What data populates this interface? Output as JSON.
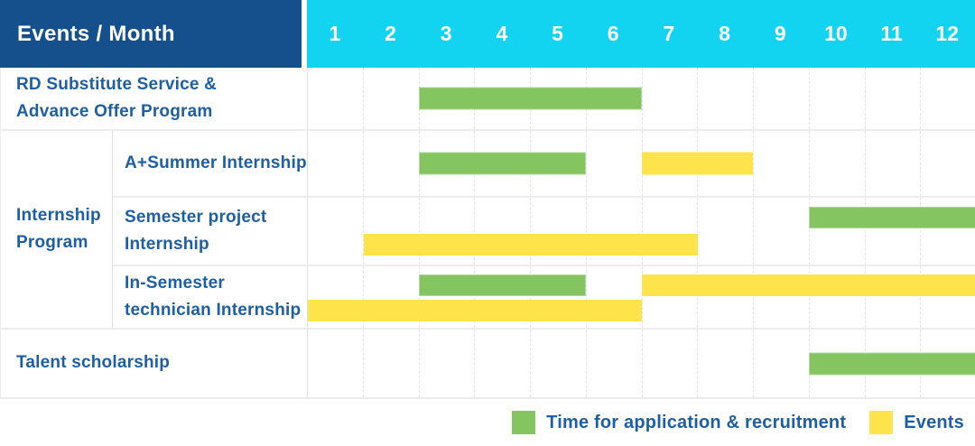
{
  "header": {
    "title": "Events / Month"
  },
  "colors": {
    "navy": "#15508d",
    "cyan": "#13d4f0",
    "green": "#85c561",
    "yellow": "#fee44a",
    "label_blue": "#1e5fa4"
  },
  "legend": {
    "items": [
      {
        "color_key": "green",
        "label": "Time for application & recruitment"
      },
      {
        "color_key": "yellow",
        "label": "Events"
      }
    ]
  },
  "group_label": "Internship Program",
  "chart_data": {
    "type": "bar",
    "subtype": "gantt-schedule",
    "title": "Events / Month",
    "x_axis": "Month",
    "x_range": [
      1,
      12
    ],
    "months": [
      "1",
      "2",
      "3",
      "4",
      "5",
      "6",
      "7",
      "8",
      "9",
      "10",
      "11",
      "12"
    ],
    "grid": true,
    "legend_position": "bottom-right",
    "rows": [
      {
        "label": "RD Substitute Service & Advance Offer Program",
        "group": null,
        "lines": 1,
        "bars": [
          {
            "kind": "application-recruitment",
            "color_key": "green",
            "start_month": 3,
            "end_month": 6,
            "line": 0
          }
        ]
      },
      {
        "label": "A+Summer Internship",
        "group": "Internship Program",
        "lines": 1,
        "bars": [
          {
            "kind": "application-recruitment",
            "color_key": "green",
            "start_month": 3,
            "end_month": 5,
            "line": 0
          },
          {
            "kind": "event",
            "color_key": "yellow",
            "start_month": 7,
            "end_month": 8,
            "line": 0
          }
        ]
      },
      {
        "label": "Semester project Internship",
        "group": "Internship Program",
        "lines": 2,
        "bars": [
          {
            "kind": "application-recruitment",
            "color_key": "green",
            "start_month": 10,
            "end_month": 12,
            "line": 0
          },
          {
            "kind": "event",
            "color_key": "yellow",
            "start_month": 2,
            "end_month": 7,
            "line": 1
          }
        ]
      },
      {
        "label": "In-Semester technician Internship",
        "group": "Internship Program",
        "lines": 2,
        "bars": [
          {
            "kind": "application-recruitment",
            "color_key": "green",
            "start_month": 3,
            "end_month": 5,
            "line": 0
          },
          {
            "kind": "event",
            "color_key": "yellow",
            "start_month": 7,
            "end_month": 12,
            "line": 0
          },
          {
            "kind": "event",
            "color_key": "yellow",
            "start_month": 1,
            "end_month": 6,
            "line": 1
          }
        ]
      },
      {
        "label": "Talent scholarship",
        "group": null,
        "lines": 1,
        "bars": [
          {
            "kind": "application-recruitment",
            "color_key": "green",
            "start_month": 10,
            "end_month": 12,
            "line": 0
          }
        ]
      }
    ]
  }
}
